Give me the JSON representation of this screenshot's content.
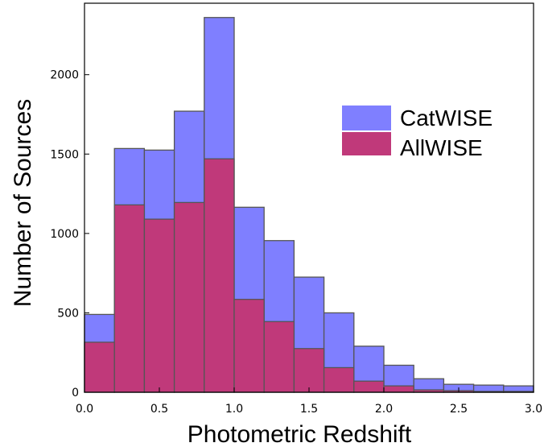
{
  "chart_data": {
    "type": "bar",
    "title": "",
    "xlabel": "Photometric Redshift",
    "ylabel": "Number of Sources",
    "xlim": [
      0.0,
      3.0
    ],
    "ylim": [
      0,
      2450
    ],
    "bin_edges": [
      0.0,
      0.2,
      0.4,
      0.6,
      0.8,
      1.0,
      1.2,
      1.4,
      1.6,
      1.8,
      2.0,
      2.2,
      2.4,
      2.6,
      2.8,
      3.0
    ],
    "x_ticks": [
      0.0,
      0.5,
      1.0,
      1.5,
      2.0,
      2.5,
      3.0
    ],
    "x_tick_labels": [
      "0.0",
      "0.5",
      "1.0",
      "1.5",
      "2.0",
      "2.5",
      "3.0"
    ],
    "y_ticks": [
      0,
      500,
      1000,
      1500,
      2000
    ],
    "y_tick_labels": [
      "0",
      "500",
      "1000",
      "1500",
      "2000"
    ],
    "legend_position": "upper-right",
    "grid": false,
    "series": [
      {
        "name": "CatWISE",
        "color": "#7f7fff",
        "values": [
          490,
          1535,
          1525,
          1770,
          2360,
          1165,
          955,
          725,
          500,
          290,
          170,
          85,
          50,
          45,
          40
        ]
      },
      {
        "name": "AllWISE",
        "color": "#c0397a",
        "values": [
          315,
          1180,
          1090,
          1195,
          1470,
          585,
          445,
          275,
          155,
          70,
          40,
          15,
          10,
          5,
          5
        ]
      }
    ]
  }
}
